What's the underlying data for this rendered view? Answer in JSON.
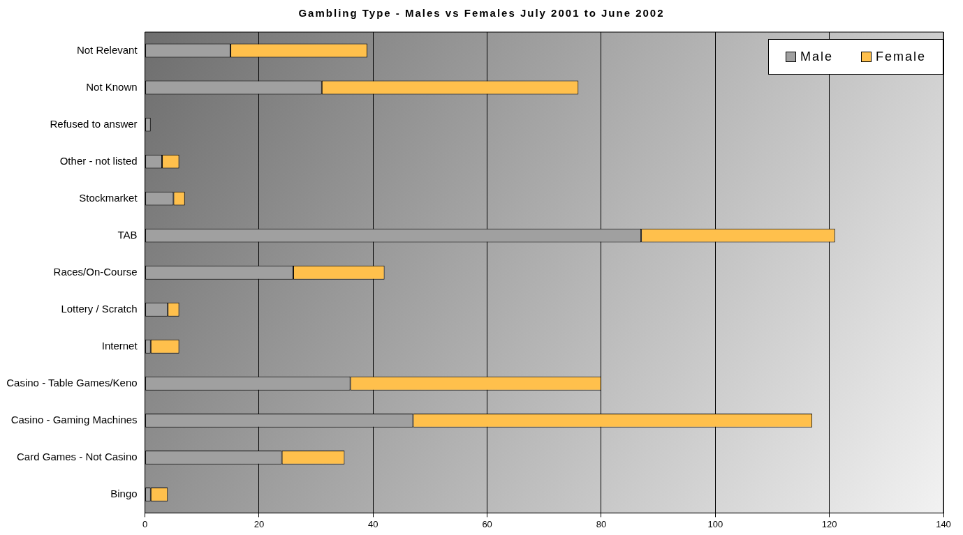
{
  "chart_data": {
    "type": "bar",
    "orientation": "horizontal",
    "stacked": true,
    "title": "Gambling Type - Males vs Females July 2001 to June 2002",
    "categories": [
      "Not Relevant",
      "Not Known",
      "Refused to answer",
      "Other - not listed",
      "Stockmarket",
      "TAB",
      "Races/On-Course",
      "Lottery / Scratch",
      "Internet",
      "Casino - Table Games/Keno",
      "Casino - Gaming Machines",
      "Card Games - Not Casino",
      "Bingo"
    ],
    "series": [
      {
        "name": "Male",
        "color": "#a0a0a0",
        "values": [
          15,
          31,
          1,
          3,
          5,
          87,
          26,
          4,
          1,
          36,
          47,
          24,
          1
        ]
      },
      {
        "name": "Female",
        "color": "#ffc04c",
        "values": [
          24,
          45,
          0,
          3,
          2,
          34,
          16,
          2,
          5,
          44,
          70,
          11,
          3
        ]
      }
    ],
    "xlim": [
      0,
      140
    ],
    "xticks": [
      0,
      20,
      40,
      60,
      80,
      100,
      120,
      140
    ],
    "grid": "x",
    "legend": "top right"
  }
}
